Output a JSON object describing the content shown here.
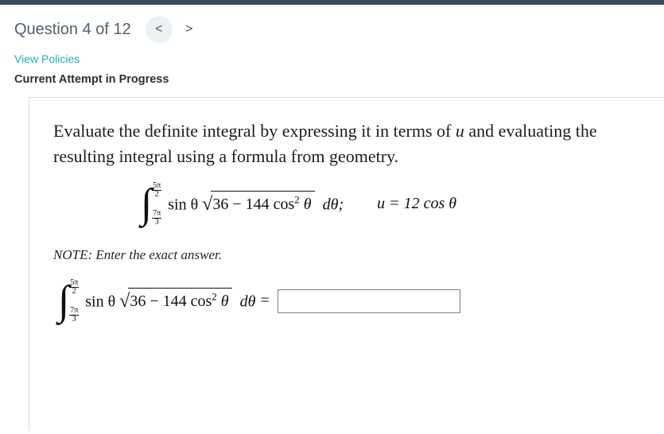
{
  "header": {
    "question_label": "Question 4 of 12",
    "prev_glyph": "<",
    "next_glyph": ">"
  },
  "links": {
    "view_policies": "View Policies"
  },
  "status": {
    "attempt_label": "Current Attempt in Progress"
  },
  "problem": {
    "prompt": "Evaluate the definite integral by expressing it in terms of u and evaluating the resulting integral using a formula from geometry.",
    "integral": {
      "upper_num": "5π",
      "upper_den": "2",
      "lower_num": "7π",
      "lower_den": "3",
      "integrand_prefix": "sin θ",
      "radicand": "36 − 144 cos",
      "radicand_sup": "2",
      "radicand_suffix": "θ",
      "dvar": "dθ;"
    },
    "substitution": "u = 12 cos θ",
    "note": "NOTE: Enter the exact answer.",
    "answer_prefix_integrand": "sin θ",
    "answer_radicand": "36 − 144 cos",
    "answer_radicand_sup": "2",
    "answer_radicand_suffix": "θ",
    "answer_dvar": "dθ",
    "equals": "=",
    "answer_value": ""
  },
  "colors": {
    "topbar": "#3b4a5c",
    "link": "#2aa8b7",
    "muted": "#55606a",
    "border": "#d7dbde"
  }
}
